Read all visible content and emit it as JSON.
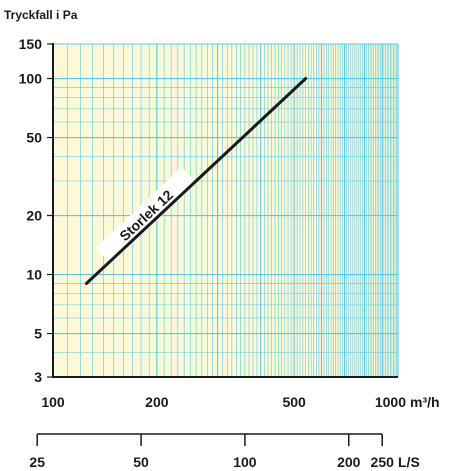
{
  "chart_data": {
    "type": "line",
    "ylabel": "Tryckfall i Pa",
    "xlabel_primary": "m³/h",
    "xlabel_secondary": "L/S",
    "x_scale": "log",
    "y_scale": "log",
    "xlim": [
      100,
      1000
    ],
    "ylim": [
      3,
      150
    ],
    "y_ticks": [
      {
        "value": 3,
        "label": "3"
      },
      {
        "value": 5,
        "label": "5"
      },
      {
        "value": 10,
        "label": "10"
      },
      {
        "value": 20,
        "label": "20"
      },
      {
        "value": 50,
        "label": "50"
      },
      {
        "value": 100,
        "label": "100"
      },
      {
        "value": 150,
        "label": "150"
      }
    ],
    "x_ticks_primary": [
      {
        "value": 100,
        "label": "100"
      },
      {
        "value": 200,
        "label": "200"
      },
      {
        "value": 500,
        "label": "500"
      },
      {
        "value": 1000,
        "label": "1000"
      }
    ],
    "x_ticks_secondary": [
      {
        "value": 25,
        "label": "25"
      },
      {
        "value": 50,
        "label": "50"
      },
      {
        "value": 100,
        "label": "100"
      },
      {
        "value": 200,
        "label": "200"
      },
      {
        "value": 250,
        "label": "250"
      }
    ],
    "grid": true,
    "colors": {
      "plot_background": "#fdf8d8",
      "grid": "#5bc8e0",
      "series": "#1a1a1a"
    },
    "series": [
      {
        "name": "Storlek 12",
        "x": [
          125,
          540
        ],
        "y": [
          9,
          100
        ]
      }
    ]
  }
}
